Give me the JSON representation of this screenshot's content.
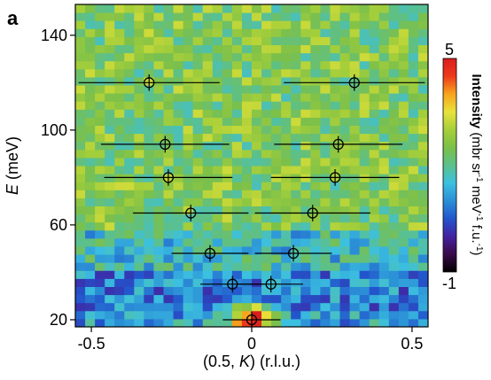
{
  "panel_label": "a",
  "chart_data": {
    "type": "heatmap",
    "title": "",
    "xlabel": "(0.5, K) (r.l.u.)",
    "xlabel_parts": [
      "(0.5, ",
      "K",
      ") (r.l.u.)"
    ],
    "ylabel": "E (meV)",
    "ylabel_parts": [
      "E",
      " (meV)"
    ],
    "xlim": [
      -0.55,
      0.55
    ],
    "ylim": [
      17,
      153
    ],
    "x_ticks": [
      -0.5,
      0,
      0.5
    ],
    "x_tick_labels": [
      "-0.5",
      "0",
      "0.5"
    ],
    "y_ticks": [
      20,
      60,
      100,
      140
    ],
    "y_tick_labels": [
      "20",
      "60",
      "100",
      "140"
    ],
    "grid": false,
    "colorbar": {
      "label_bold": "Intensity",
      "label_rest": "(mbr sr",
      "label_sup1": "-1",
      "label_mid": " meV",
      "label_sup2": "-1",
      "label_end": " f.u.",
      "label_sup3": "-1",
      "label_close": ")",
      "max_label": "5",
      "min_label": "-1",
      "range": [
        -1,
        5
      ]
    },
    "colormap": [
      "#000000",
      "#3a0a4a",
      "#4422a0",
      "#2255cc",
      "#2b8fd6",
      "#3cc0e0",
      "#5cc08a",
      "#7cc04a",
      "#a6cf3a",
      "#e8e23a",
      "#f7a41e",
      "#ee3a1c",
      "#d81e1e"
    ],
    "intensity_bands": [
      {
        "e_min": 17,
        "e_max": 24,
        "intensity": 1.2
      },
      {
        "e_min": 24,
        "e_max": 42,
        "intensity": 0.9
      },
      {
        "e_min": 42,
        "e_max": 58,
        "intensity": 1.6
      },
      {
        "e_min": 58,
        "e_max": 153,
        "intensity": 2.5
      }
    ],
    "hotspot": {
      "k": 0,
      "e": 20,
      "intensity": 5
    },
    "series": [
      {
        "points": [
          {
            "k": 0.0,
            "e": 20,
            "xerr": 0.09
          },
          {
            "k": -0.06,
            "e": 35,
            "xerr": 0.1
          },
          {
            "k": 0.06,
            "e": 35,
            "xerr": 0.1
          },
          {
            "k": -0.13,
            "e": 48,
            "xerr": 0.12
          },
          {
            "k": 0.13,
            "e": 48,
            "xerr": 0.12
          },
          {
            "k": -0.19,
            "e": 65,
            "xerr": 0.18
          },
          {
            "k": 0.19,
            "e": 65,
            "xerr": 0.18
          },
          {
            "k": -0.26,
            "e": 80,
            "xerr": 0.2
          },
          {
            "k": 0.26,
            "e": 80,
            "xerr": 0.2
          },
          {
            "k": -0.27,
            "e": 94,
            "xerr": 0.2
          },
          {
            "k": 0.27,
            "e": 94,
            "xerr": 0.2
          },
          {
            "k": -0.32,
            "e": 120,
            "xerr": 0.22
          },
          {
            "k": 0.32,
            "e": 120,
            "xerr": 0.22
          }
        ]
      }
    ]
  }
}
